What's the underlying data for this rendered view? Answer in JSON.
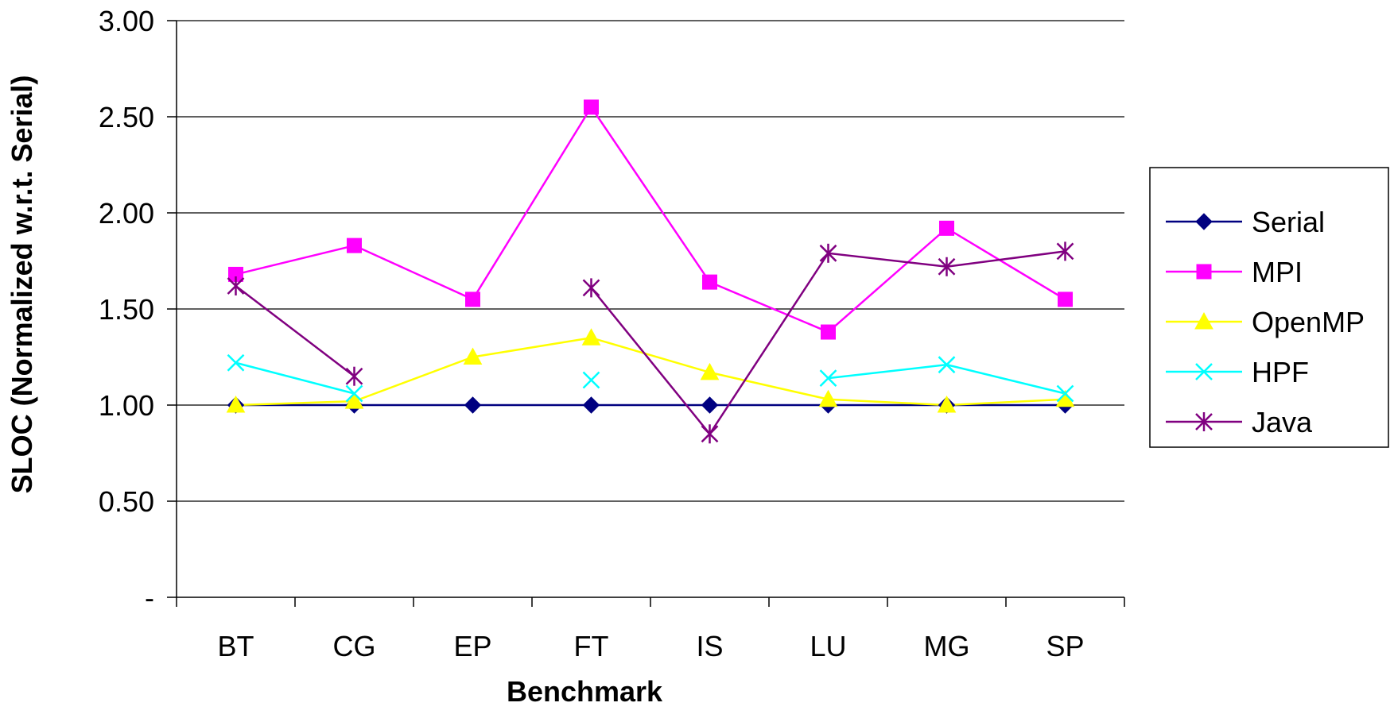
{
  "chart_data": {
    "type": "line",
    "title": "",
    "xlabel": "Benchmark",
    "ylabel": "SLOC (Normalized w.r.t. Serial)",
    "ylim": [
      0,
      3
    ],
    "yticks": [
      {
        "value": 0,
        "label": "-"
      },
      {
        "value": 0.5,
        "label": "0.50"
      },
      {
        "value": 1.0,
        "label": "1.00"
      },
      {
        "value": 1.5,
        "label": "1.50"
      },
      {
        "value": 2.0,
        "label": "2.00"
      },
      {
        "value": 2.5,
        "label": "2.50"
      },
      {
        "value": 3.0,
        "label": "3.00"
      }
    ],
    "categories": [
      "BT",
      "CG",
      "EP",
      "FT",
      "IS",
      "LU",
      "MG",
      "SP"
    ],
    "grid": "horizontal",
    "legend_position": "right",
    "series": [
      {
        "name": "Serial",
        "color": "#000080",
        "marker": "diamond",
        "values": [
          1.0,
          1.0,
          1.0,
          1.0,
          1.0,
          1.0,
          1.0,
          1.0
        ]
      },
      {
        "name": "MPI",
        "color": "#ff00ff",
        "marker": "square",
        "values": [
          1.68,
          1.83,
          1.55,
          2.55,
          1.64,
          1.38,
          1.92,
          1.55
        ]
      },
      {
        "name": "OpenMP",
        "color": "#ffff00",
        "marker": "triangle",
        "values": [
          1.0,
          1.02,
          1.25,
          1.35,
          1.17,
          1.03,
          1.0,
          1.03
        ]
      },
      {
        "name": "HPF",
        "color": "#00ffff",
        "marker": "x",
        "values": [
          1.22,
          1.06,
          null,
          1.13,
          null,
          1.14,
          1.21,
          1.06
        ]
      },
      {
        "name": "Java",
        "color": "#800080",
        "marker": "star",
        "values": [
          1.62,
          1.15,
          null,
          1.61,
          0.85,
          1.79,
          1.72,
          1.8
        ]
      }
    ]
  }
}
